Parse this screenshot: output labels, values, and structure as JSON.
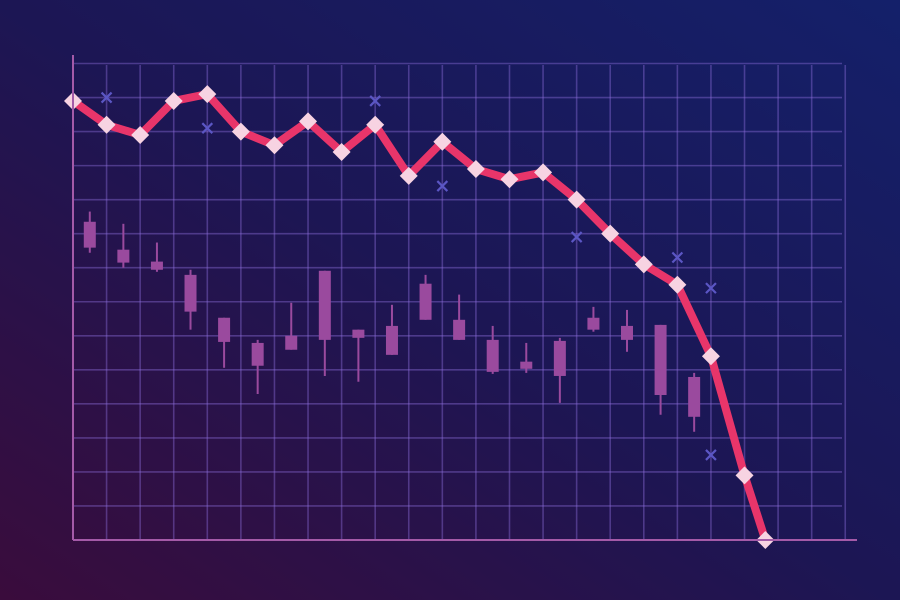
{
  "chart_data": [
    {
      "type": "line",
      "color": "#e8356a",
      "marker_color": "#f7d3e2",
      "x": [
        0,
        1,
        2,
        3,
        4,
        5,
        6,
        7,
        8,
        9,
        10,
        11,
        12,
        13,
        14,
        15,
        16,
        17,
        18,
        19,
        20,
        20.62
      ],
      "values": [
        12.9,
        12.2,
        11.9,
        12.9,
        13.1,
        12.0,
        11.6,
        12.3,
        11.4,
        12.2,
        10.7,
        11.7,
        10.9,
        10.6,
        10.8,
        10.0,
        9.0,
        8.1,
        7.5,
        5.4,
        1.9,
        0
      ],
      "xlim": [
        0,
        23.35
      ],
      "ylim": [
        0,
        14.25
      ],
      "xticks": [
        0,
        1,
        2,
        3,
        4,
        5,
        6,
        7,
        8,
        9,
        10,
        11,
        12,
        13,
        14,
        15,
        16,
        17,
        18,
        19,
        20,
        21,
        22,
        23
      ],
      "yticks": [
        0,
        1,
        2,
        3,
        4,
        5,
        6,
        7,
        8,
        9,
        10,
        11,
        12,
        13,
        14
      ],
      "grid": true
    },
    {
      "type": "scatter",
      "color": "#5b56c4",
      "x": [
        1,
        4,
        9,
        11,
        15,
        18,
        19,
        19
      ],
      "values": [
        13.0,
        12.1,
        12.9,
        10.4,
        8.9,
        8.3,
        7.4,
        2.5
      ],
      "xlim": [
        0,
        23.35
      ],
      "ylim": [
        0,
        14.25
      ]
    },
    {
      "type": "candlestick",
      "color": "#9a4a9e",
      "x": [
        0.5,
        1.5,
        2.5,
        3.5,
        4.5,
        5.5,
        6.5,
        7.5,
        8.5,
        9.5,
        10.5,
        11.5,
        12.5,
        13.5,
        14.5,
        15.5,
        16.5,
        17.5,
        18.5
      ],
      "open": [
        9.35,
        8.53,
        8.18,
        7.79,
        6.53,
        5.79,
        6.0,
        7.91,
        6.18,
        6.29,
        7.53,
        6.47,
        5.88,
        5.24,
        5.85,
        6.53,
        6.29,
        6.32,
        4.79
      ],
      "close": [
        8.59,
        8.15,
        7.94,
        6.71,
        5.82,
        5.12,
        5.59,
        5.88,
        5.94,
        5.44,
        6.47,
        5.88,
        4.94,
        5.03,
        4.82,
        6.18,
        5.88,
        4.26,
        3.62
      ],
      "high": [
        9.65,
        9.29,
        8.74,
        7.94,
        6.53,
        5.88,
        6.97,
        7.91,
        6.18,
        6.91,
        7.79,
        7.21,
        6.29,
        5.79,
        5.94,
        6.85,
        6.76,
        6.32,
        4.91
      ],
      "low": [
        8.44,
        8.0,
        7.88,
        6.18,
        5.06,
        4.29,
        5.59,
        4.82,
        4.65,
        5.44,
        6.47,
        5.88,
        4.88,
        4.91,
        4.03,
        6.12,
        5.53,
        3.68,
        3.18
      ],
      "xlim": [
        0,
        23.35
      ],
      "ylim": [
        0,
        14.25
      ]
    }
  ]
}
